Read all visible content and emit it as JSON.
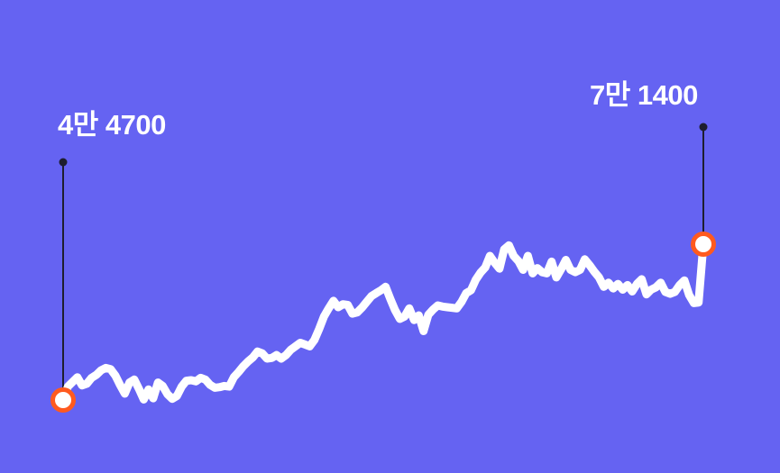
{
  "chart_data": {
    "type": "line",
    "title": "",
    "xlabel": "",
    "ylabel": "",
    "ylim": [
      40000,
      76000
    ],
    "grid": false,
    "legend": "none",
    "colors": {
      "background": "#6563F2",
      "line": "#FFFFFF",
      "marker_ring": "#FF5A1F",
      "marker_fill": "#FFFFFF",
      "leader_line": "#1E1E2E"
    },
    "annotations": {
      "start_label": "4만 4700",
      "end_label": "7만 1400"
    },
    "series": [
      {
        "values": [
          44700,
          47000,
          47800,
          48600,
          47200,
          47500,
          48500,
          49000,
          49800,
          50200,
          50000,
          48900,
          47300,
          45800,
          47700,
          48200,
          46600,
          44800,
          46500,
          45000,
          47700,
          47100,
          45700,
          44900,
          45400,
          47000,
          48000,
          48100,
          47900,
          48500,
          48200,
          47300,
          46800,
          46900,
          47100,
          47000,
          48600,
          49500,
          50500,
          51300,
          52000,
          53000,
          52700,
          51800,
          51900,
          52400,
          51800,
          52400,
          53300,
          53900,
          54500,
          54200,
          53900,
          55000,
          56900,
          59000,
          60400,
          61700,
          60600,
          61100,
          61000,
          59500,
          59700,
          60500,
          61500,
          62500,
          63000,
          63500,
          64100,
          62000,
          60100,
          58600,
          59000,
          60400,
          58400,
          59200,
          56500,
          59300,
          60200,
          60900,
          60700,
          60600,
          60500,
          60400,
          61500,
          63000,
          63500,
          65300,
          66500,
          67400,
          69400,
          68200,
          67200,
          70500,
          71200,
          69400,
          68500,
          67000,
          69400,
          66400,
          67300,
          66600,
          66400,
          68400,
          65700,
          67100,
          68700,
          67000,
          66600,
          67000,
          68800,
          67800,
          66700,
          65700,
          64100,
          64800,
          63800,
          64600,
          63600,
          64400,
          63300,
          64600,
          65400,
          62800,
          63600,
          64000,
          64800,
          63200,
          62900,
          63200,
          64400,
          65200,
          62700,
          61300,
          61400,
          71400
        ]
      }
    ]
  }
}
